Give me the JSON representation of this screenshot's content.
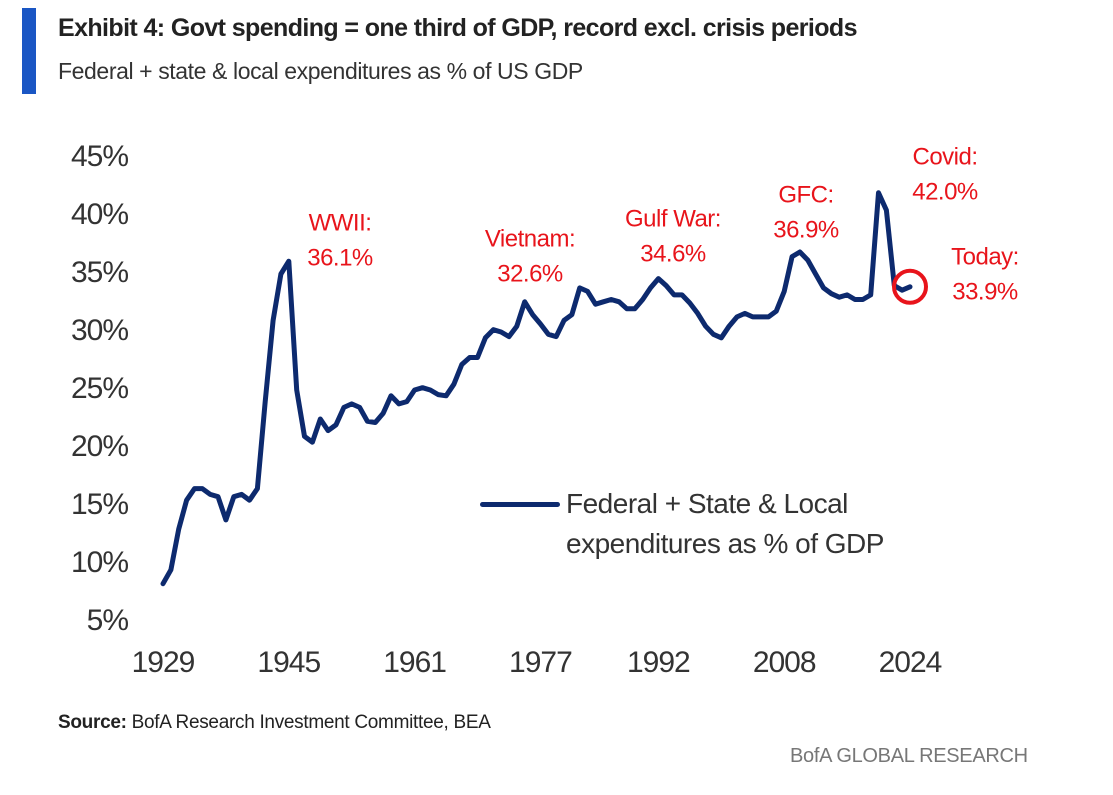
{
  "chart_data": {
    "type": "line",
    "title": "Exhibit 4: Govt spending = one third of GDP, record excl. crisis periods",
    "subtitle": "Federal + state & local expenditures as % of US GDP",
    "source_label": "Source:",
    "source": "BofA Research Investment Committee, BEA",
    "footer": "BofA GLOBAL RESEARCH",
    "x": [
      1929,
      1930,
      1931,
      1932,
      1933,
      1934,
      1935,
      1936,
      1937,
      1938,
      1939,
      1940,
      1941,
      1942,
      1943,
      1944,
      1945,
      1946,
      1947,
      1948,
      1949,
      1950,
      1951,
      1952,
      1953,
      1954,
      1955,
      1956,
      1957,
      1958,
      1959,
      1960,
      1961,
      1962,
      1963,
      1964,
      1965,
      1966,
      1967,
      1968,
      1969,
      1970,
      1971,
      1972,
      1973,
      1974,
      1975,
      1976,
      1977,
      1978,
      1979,
      1980,
      1981,
      1982,
      1983,
      1984,
      1985,
      1986,
      1987,
      1988,
      1989,
      1990,
      1991,
      1992,
      1993,
      1994,
      1995,
      1996,
      1997,
      1998,
      1999,
      2000,
      2001,
      2002,
      2003,
      2004,
      2005,
      2006,
      2007,
      2008,
      2009,
      2010,
      2011,
      2012,
      2013,
      2014,
      2015,
      2016,
      2017,
      2018,
      2019,
      2020,
      2021,
      2022,
      2023,
      2024
    ],
    "series": [
      {
        "name": "Federal + State & Local expenditures as % of GDP",
        "color": "#0d2a6e",
        "values": [
          8.3,
          9.5,
          13,
          15.5,
          16.5,
          16.5,
          16,
          15.8,
          13.8,
          15.8,
          16,
          15.5,
          16.5,
          24,
          31,
          35,
          36.1,
          25,
          21,
          20.5,
          22.5,
          21.5,
          22,
          23.5,
          23.8,
          23.5,
          22.3,
          22.2,
          23,
          24.5,
          23.8,
          24,
          25,
          25.2,
          25,
          24.6,
          24.5,
          25.5,
          27.2,
          27.8,
          27.8,
          29.5,
          30.2,
          30,
          29.6,
          30.5,
          32.6,
          31.5,
          30.7,
          29.8,
          29.6,
          31,
          31.5,
          33.8,
          33.5,
          32.4,
          32.6,
          32.8,
          32.6,
          32,
          32,
          32.8,
          33.8,
          34.6,
          34,
          33.2,
          33.2,
          32.5,
          31.6,
          30.5,
          29.8,
          29.5,
          30.5,
          31.3,
          31.6,
          31.3,
          31.3,
          31.3,
          31.8,
          33.5,
          36.5,
          36.9,
          36.2,
          35,
          33.8,
          33.3,
          33,
          33.2,
          32.8,
          32.8,
          33.2,
          42.0,
          40.5,
          34,
          33.6,
          33.9
        ]
      }
    ],
    "xlim": [
      1929,
      2024
    ],
    "xticks": [
      1929,
      1945,
      1961,
      1977,
      1992,
      2008,
      2024
    ],
    "ylim": [
      5,
      45
    ],
    "yticks": [
      {
        "value": 5,
        "label": "5%"
      },
      {
        "value": 10,
        "label": "10%"
      },
      {
        "value": 15,
        "label": "15%"
      },
      {
        "value": 20,
        "label": "20%"
      },
      {
        "value": 25,
        "label": "25%"
      },
      {
        "value": 30,
        "label": "30%"
      },
      {
        "value": 35,
        "label": "35%"
      },
      {
        "value": 40,
        "label": "40%"
      },
      {
        "value": 45,
        "label": "45%"
      }
    ],
    "grid": false,
    "annotations": [
      {
        "lines": [
          "WWII:",
          "36.1%"
        ]
      },
      {
        "lines": [
          "Vietnam:",
          "32.6%"
        ]
      },
      {
        "lines": [
          "Gulf War:",
          "34.6%"
        ]
      },
      {
        "lines": [
          "GFC:",
          "36.9%"
        ]
      },
      {
        "lines": [
          "Covid:",
          "42.0%"
        ]
      },
      {
        "lines": [
          "Today:",
          "33.9%"
        ]
      }
    ],
    "annotation_color": "#e8141b"
  }
}
